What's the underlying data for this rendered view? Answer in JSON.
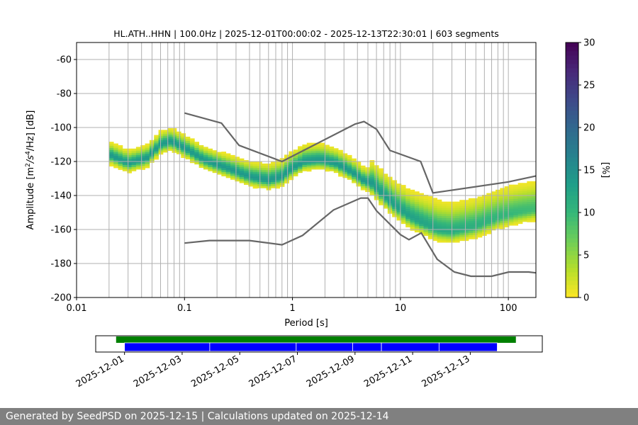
{
  "title": "HL.ATH..HHN | 100.0Hz | 2025-12-01T00:00:02 - 2025-12-13T22:30:01 | 603 segments",
  "footer": "Generated by SeedPSD on 2025-12-15 | Calculations updated on 2025-12-14",
  "colors": {
    "viridis_low": "#fde725",
    "viridis_mid": "#21918c",
    "viridis_high": "#440154",
    "noise_model": "#666666",
    "segment_green": "#008000",
    "segment_blue": "#0000ff"
  },
  "chart_data": [
    {
      "type": "heatmap",
      "title": "HL.ATH..HHN | 100.0Hz | 2025-12-01T00:00:02 - 2025-12-13T22:30:01 | 603 segments",
      "xlabel": "Period [s]",
      "ylabel_parts": [
        "Amplitude [m",
        "2",
        "/s",
        "4",
        "/Hz] [dB]"
      ],
      "x_scale": "log",
      "xlim": [
        0.01,
        180
      ],
      "ylim": [
        -200,
        -50
      ],
      "x_tick_labels": [
        {
          "value": 0.01,
          "label": "0.01"
        },
        {
          "value": 0.1,
          "label": "0.1"
        },
        {
          "value": 1,
          "label": "1"
        },
        {
          "value": 10,
          "label": "10"
        },
        {
          "value": 100,
          "label": "100"
        }
      ],
      "y_ticks": [
        -200,
        -180,
        -160,
        -140,
        -120,
        -100,
        -80,
        -60
      ],
      "grid": true,
      "colorbar": {
        "label": "[%]",
        "range": [
          0,
          30
        ],
        "ticks": [
          0,
          5,
          10,
          15,
          20,
          25,
          30
        ]
      },
      "psd_period_range": [
        0.02,
        180
      ],
      "psd_mode": {
        "periods": [
          0.02,
          0.03,
          0.045,
          0.06,
          0.075,
          0.1,
          0.15,
          0.25,
          0.4,
          0.6,
          0.8,
          1.0,
          1.3,
          1.8,
          2.5,
          3.5,
          4.5,
          5.5,
          7,
          9,
          12,
          16,
          22,
          30,
          50,
          80,
          120,
          180
        ],
        "db": [
          -116,
          -121,
          -118,
          -110,
          -108,
          -112,
          -119,
          -124,
          -129,
          -131,
          -129,
          -124,
          -120,
          -119,
          -121,
          -126,
          -131,
          -133,
          -140,
          -146,
          -152,
          -156,
          -160,
          -161,
          -158,
          -153,
          -150,
          -148
        ]
      },
      "series": [
        {
          "name": "noise-model-high",
          "x": [
            0.1,
            0.22,
            0.32,
            0.8,
            3.8,
            4.6,
            6.0,
            8.0,
            15.4,
            20.0,
            100.0,
            180.0
          ],
          "y": [
            -91.5,
            -97.4,
            -110.5,
            -120.0,
            -98.0,
            -96.5,
            -101.0,
            -113.5,
            -120.0,
            -138.5,
            -132.0,
            -128.5
          ]
        },
        {
          "name": "noise-model-low",
          "x": [
            0.1,
            0.17,
            0.4,
            0.8,
            1.24,
            2.4,
            4.3,
            5.0,
            6.0,
            10.0,
            12.0,
            15.6,
            21.9,
            31.6,
            45.0,
            70.0,
            101.0,
            154.0,
            180.0
          ],
          "y": [
            -168.0,
            -166.5,
            -166.5,
            -169.0,
            -163.5,
            -148.5,
            -141.5,
            -141.5,
            -149.0,
            -163.0,
            -166.0,
            -162.0,
            -177.5,
            -185.0,
            -187.5,
            -187.5,
            -185.0,
            -185.0,
            -185.5
          ]
        }
      ]
    },
    {
      "type": "timeline",
      "x_tick_labels": [
        "2025-12-01",
        "2025-12-03",
        "2025-12-05",
        "2025-12-07",
        "2025-12-09",
        "2025-12-11",
        "2025-12-13"
      ],
      "xlim": [
        "2025-11-30T00:00",
        "2025-12-15T12:00"
      ],
      "data_coverage": {
        "start": "2025-11-30T17:00",
        "end": "2025-12-14T14:00",
        "color": "#008000"
      },
      "psd_coverage": {
        "color": "#0000ff",
        "segments": [
          [
            "2025-12-01T00:00",
            "2025-12-03T23:00"
          ],
          [
            "2025-12-03T23:00",
            "2025-12-06T23:00"
          ],
          [
            "2025-12-06T23:00",
            "2025-12-08T22:00"
          ],
          [
            "2025-12-08T22:00",
            "2025-12-09T22:00"
          ],
          [
            "2025-12-09T22:00",
            "2025-12-11T22:00"
          ],
          [
            "2025-12-11T22:00",
            "2025-12-13T22:30"
          ]
        ]
      }
    }
  ]
}
